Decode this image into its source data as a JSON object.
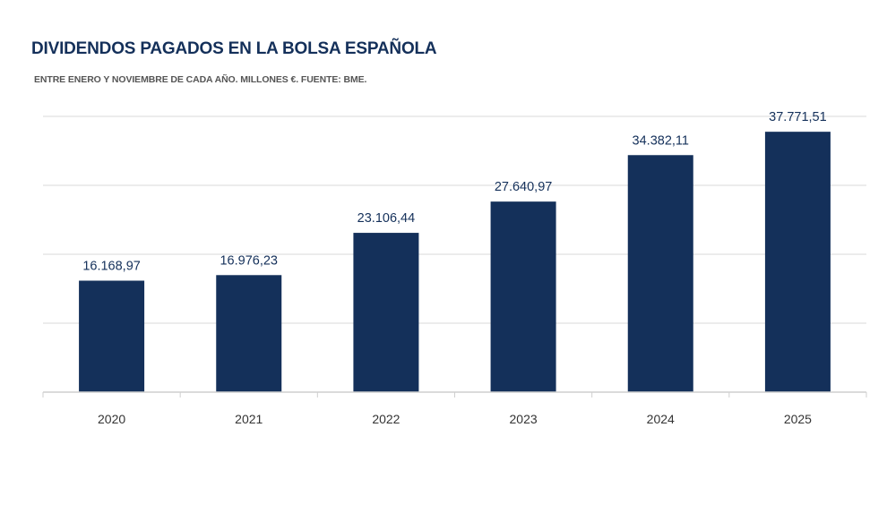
{
  "chart_data": {
    "type": "bar",
    "title": "DIVIDENDOS PAGADOS EN LA BOLSA ESPAÑOLA",
    "subtitle": "ENTRE ENERO Y NOVIEMBRE DE CADA AÑO. MILLONES €. FUENTE: BME.",
    "categories": [
      "2020",
      "2021",
      "2022",
      "2023",
      "2024",
      "2025"
    ],
    "values": [
      16168.97,
      16976.23,
      23106.44,
      27640.97,
      34382.11,
      37771.51
    ],
    "data_labels": [
      "16.168,97",
      "16.976,23",
      "23.106,44",
      "27.640,97",
      "34.382,11",
      "37.771,51"
    ],
    "xlabel": "",
    "ylabel": "",
    "ylim": [
      0,
      40000
    ],
    "grid": true,
    "legend": "none",
    "bar_color": "#14305a",
    "grid_color": "#d9d9d9",
    "axis_color": "#cfcfcf"
  }
}
